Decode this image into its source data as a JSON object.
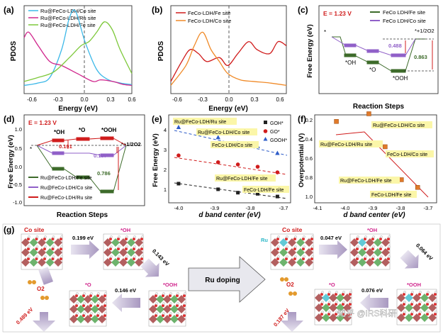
{
  "panels": {
    "a": {
      "label": "(a)",
      "ylabel": "PDOS",
      "xlabel": "Energy (eV)",
      "xticks": [
        "-0.6",
        "-0.3",
        "0.0",
        "0.3",
        "0.6"
      ],
      "legend": [
        "Ru@FeCo-LDH/Co site",
        "Ru@FeCo-LDH/Ru site",
        "Ru@FeCo-LDH/Fe site"
      ]
    },
    "b": {
      "label": "(b)",
      "ylabel": "PDOS",
      "xlabel": "Energy (eV)",
      "xticks": [
        "-0.6",
        "-0.3",
        "0.0",
        "0.3",
        "0.6"
      ],
      "legend": [
        "FeCo-LDH/Fe site",
        "FeCo-LDH/Co site"
      ]
    },
    "c": {
      "label": "(c)",
      "title": "E = 1.23 V",
      "ylabel": "Free Energy (eV)",
      "xlabel": "Reaction Steps",
      "legend": [
        "FeCo LDH/Fe site",
        "FeCo LDH/Co site"
      ],
      "steps": [
        "*",
        "*OH",
        "*O",
        "*OOH",
        "*+1/2O2"
      ],
      "values": [
        "0.488",
        "0.863"
      ]
    },
    "d": {
      "label": "(d)",
      "title": "E = 1.23 V",
      "ylabel": "Free Energy (eV)",
      "xlabel": "Reaction Steps",
      "steps": [
        "*",
        "*OH",
        "*O",
        "*OOH",
        "*+1/2O2"
      ],
      "values": [
        "0.191",
        "0.187",
        "0.786"
      ],
      "legend": [
        "Ru@FeCo-LDH/Fe site",
        "Ru@FeCo-LDH/Co site",
        "Ru@FeCo-LDH/Ru site"
      ]
    },
    "e": {
      "label": "(e)",
      "ylabel": "Free Energy (eV)",
      "xlabel": "d band center (eV)",
      "legend": [
        "GOH*",
        "GO*",
        "GOOH*"
      ],
      "annotations": [
        "Ru@FeCo-LDH/Ru site",
        "Ru@FeCo-LDH/Co site",
        "FeCo-LDH/Co site",
        "Ru@FeCo-LDH/Fe site",
        "FeCo-LDH/Fe site"
      ]
    },
    "f": {
      "label": "(f)",
      "ylabel": "Overpotential (V)",
      "xlabel": "d band center (eV)",
      "annotations": [
        "Ru@FeCo-LDH/Co site",
        "Ru@FeCo-LDH/Ru site",
        "FeCo-LDH/Co site",
        "Ru@FeCo-LDH/Fe site",
        "FeCo-LDH/Fe site"
      ]
    },
    "g": {
      "label": "(g)",
      "left_site": "Co site",
      "right_site": "Co site",
      "ru_label": "Ru",
      "center": "Ru doping",
      "left_energies": [
        "0.199 eV",
        "0.143 eV",
        "0.146 eV",
        "0.489 eV"
      ],
      "right_energies": [
        "0.047 eV",
        "0.064 eV",
        "0.076 eV",
        "0.187 eV"
      ],
      "species": [
        "*OH",
        "*O",
        "*OOH",
        "O2"
      ],
      "watermark": "知乎 @IRS科研"
    }
  },
  "colors": {
    "cyan": "#3cb8e8",
    "magenta": "#d0258c",
    "green": "#7dc83a",
    "red": "#d01c1c",
    "orange": "#f08a28",
    "purple": "#9060c8",
    "dkgreen": "#3d6b2a",
    "highlight": "#fbf6a8"
  },
  "chart_data": [
    {
      "type": "line",
      "panel": "a",
      "xlabel": "Energy (eV)",
      "ylabel": "PDOS",
      "xlim": [
        -0.68,
        0.7
      ],
      "series": [
        {
          "name": "Ru@FeCo-LDH/Co site",
          "x": [
            -0.68,
            -0.5,
            -0.35,
            -0.2,
            -0.1,
            -0.02,
            0.1,
            0.25,
            0.4,
            0.55,
            0.7
          ],
          "y": [
            0.05,
            0.08,
            0.15,
            0.5,
            0.9,
            0.98,
            0.6,
            0.25,
            0.12,
            0.08,
            0.06
          ]
        },
        {
          "name": "Ru@FeCo-LDH/Ru site",
          "x": [
            -0.68,
            -0.62,
            -0.5,
            -0.35,
            -0.2,
            0,
            0.2,
            0.3,
            0.45,
            0.6,
            0.7
          ],
          "y": [
            0.65,
            0.72,
            0.55,
            0.35,
            0.3,
            0.2,
            0.1,
            0.12,
            0.1,
            0.06,
            0.05
          ]
        },
        {
          "name": "Ru@FeCo-LDH/Fe site",
          "x": [
            -0.68,
            -0.5,
            -0.3,
            -0.1,
            0.05,
            0.15,
            0.25,
            0.35,
            0.45,
            0.55,
            0.7
          ],
          "y": [
            0.1,
            0.15,
            0.22,
            0.4,
            0.55,
            0.6,
            0.72,
            0.85,
            0.75,
            0.5,
            0.2
          ]
        }
      ]
    },
    {
      "type": "line",
      "panel": "b",
      "xlabel": "Energy (eV)",
      "ylabel": "PDOS",
      "xlim": [
        -0.68,
        0.7
      ],
      "series": [
        {
          "name": "FeCo-LDH/Fe site",
          "x": [
            -0.68,
            -0.55,
            -0.45,
            -0.35,
            -0.25,
            -0.1,
            0,
            0.12,
            0.25,
            0.35,
            0.5,
            0.6,
            0.7
          ],
          "y": [
            0.1,
            0.35,
            0.5,
            0.45,
            0.35,
            0.4,
            0.3,
            0.45,
            0.6,
            0.5,
            0.45,
            0.6,
            0.55
          ]
        },
        {
          "name": "FeCo-LDH/Co site",
          "x": [
            -0.68,
            -0.5,
            -0.4,
            -0.3,
            -0.2,
            -0.1,
            0,
            0.15,
            0.3,
            0.5,
            0.7
          ],
          "y": [
            0.05,
            0.3,
            0.55,
            0.72,
            0.5,
            0.35,
            0.2,
            0.12,
            0.1,
            0.08,
            0.05
          ]
        }
      ]
    },
    {
      "type": "scatter",
      "panel": "e",
      "xlabel": "d band center (eV)",
      "ylabel": "Free Energy (eV)",
      "xlim": [
        -4.05,
        -3.68
      ],
      "ylim": [
        0.6,
        4.5
      ],
      "series": [
        {
          "name": "GOH*",
          "x": [
            -4.02,
            -3.9,
            -3.84,
            -3.78,
            -3.72
          ],
          "y": [
            1.45,
            1.2,
            1.05,
            1.0,
            0.88
          ]
        },
        {
          "name": "GO*",
          "x": [
            -4.02,
            -3.9,
            -3.84,
            -3.78,
            -3.72
          ],
          "y": [
            2.7,
            2.4,
            2.3,
            2.2,
            1.95
          ]
        },
        {
          "name": "GOOH*",
          "x": [
            -4.02,
            -3.9,
            -3.84,
            -3.78,
            -3.72
          ],
          "y": [
            3.95,
            3.5,
            3.25,
            3.1,
            2.8
          ]
        }
      ]
    },
    {
      "type": "scatter",
      "panel": "f",
      "xlabel": "d band center (eV)",
      "ylabel": "Overpotential (V)",
      "xlim": [
        -4.1,
        -3.65
      ],
      "ylim": [
        1.0,
        0.2
      ],
      "series": [
        {
          "name": "sites",
          "x": [
            -4.02,
            -3.9,
            -3.84,
            -3.78,
            -3.72
          ],
          "y": [
            0.26,
            0.19,
            0.49,
            0.79,
            0.86
          ]
        }
      ]
    }
  ]
}
